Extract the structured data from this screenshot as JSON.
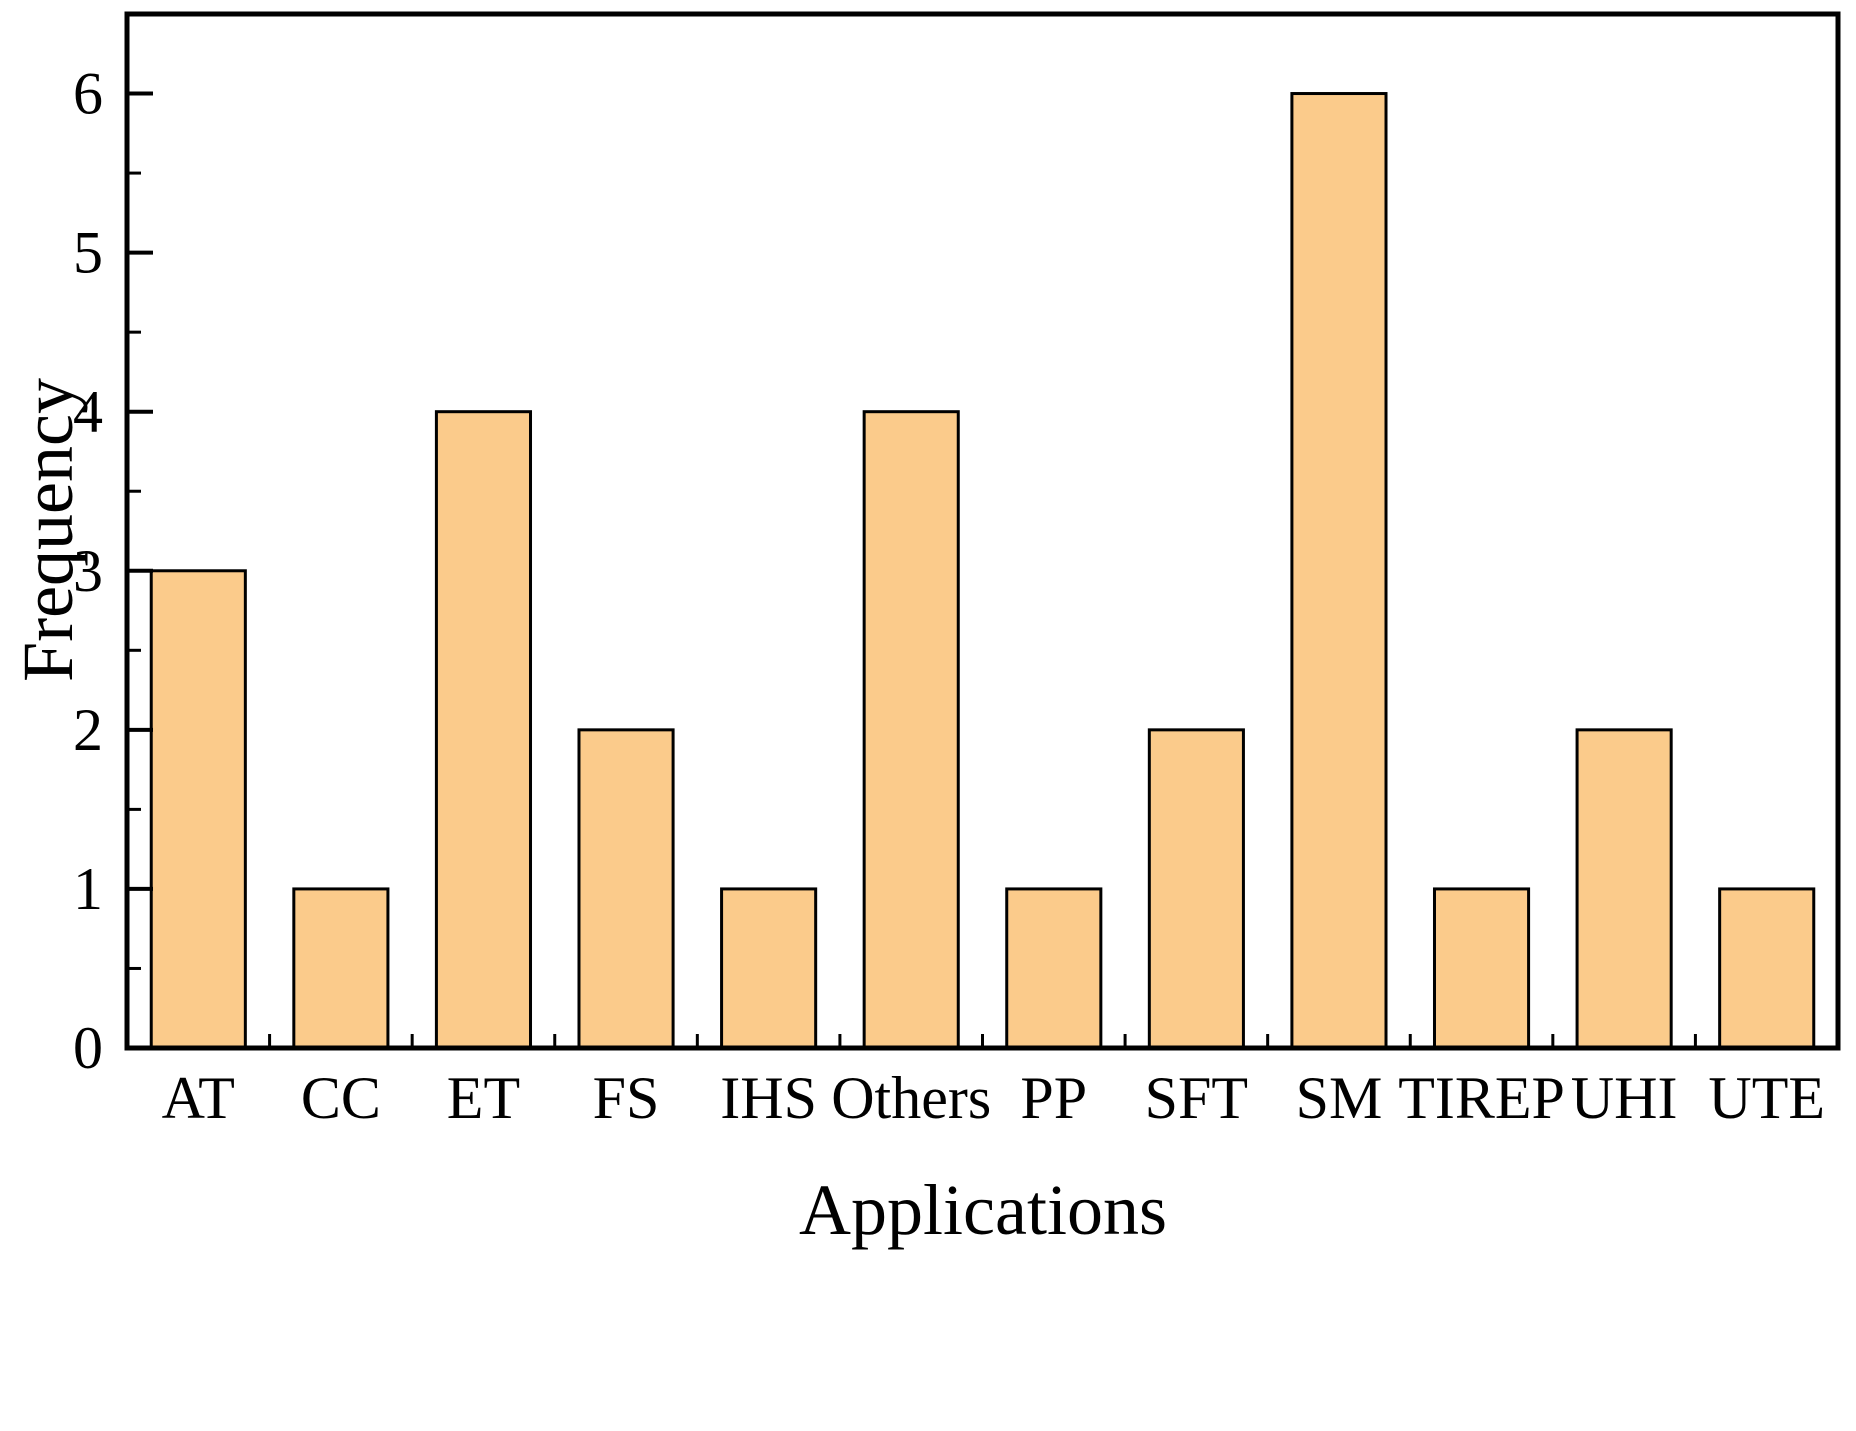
{
  "chart_data": {
    "type": "bar",
    "title": "",
    "xlabel": "Applications",
    "ylabel": "Frequency",
    "categories": [
      "AT",
      "CC",
      "ET",
      "FS",
      "IHS",
      "Others",
      "PP",
      "SFT",
      "SM",
      "TIREP",
      "UHI",
      "UTE"
    ],
    "values": [
      3,
      1,
      4,
      2,
      1,
      4,
      1,
      2,
      6,
      1,
      2,
      1
    ],
    "yticks": [
      0,
      1,
      2,
      3,
      4,
      5,
      6
    ],
    "minor_tick_step": 0.5,
    "ylim": [
      0,
      6.5
    ],
    "grid": false,
    "legend": "none",
    "bar_width_fraction": 0.66,
    "colors": {
      "bar_fill": "#FBCB8B",
      "bar_stroke": "#000000",
      "axis": "#000000",
      "background": "#FFFFFF"
    }
  }
}
